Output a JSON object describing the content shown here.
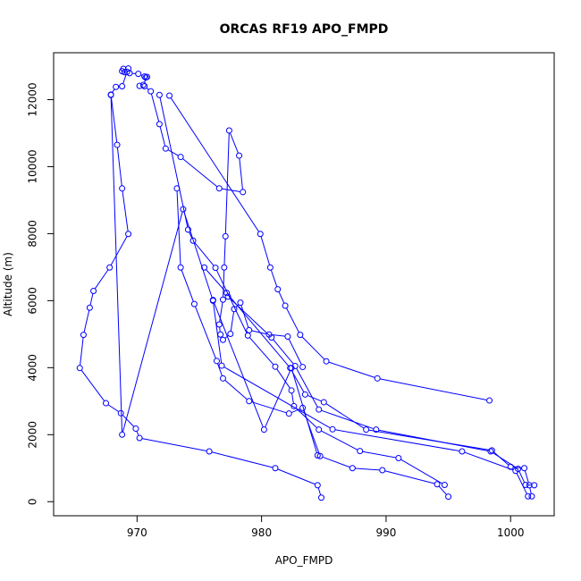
{
  "chart_data": {
    "type": "line",
    "title": "ORCAS RF19 APO_FMPD",
    "xlabel": "APO_FMPD",
    "ylabel": "Altitude (m)",
    "xlim": [
      963.3,
      1003.5
    ],
    "ylim": [
      -420,
      13400
    ],
    "xticks": [
      970,
      980,
      990,
      1000
    ],
    "yticks": [
      0,
      2000,
      4000,
      6000,
      8000,
      10000,
      12000
    ],
    "grid": false,
    "legend": "none",
    "colors": {
      "series": "#0000ff",
      "axes": "#000000",
      "background": "#ffffff"
    },
    "series": [
      {
        "x": [
          984.8,
          984.5,
          981.1,
          975.8,
          970.2,
          969.9,
          968.7,
          967.5,
          965.4,
          965.7,
          966.2,
          966.5,
          967.8,
          969.3,
          968.8,
          968.4,
          967.9,
          968.3,
          968.8,
          969.2,
          969.3,
          969.0,
          968.9,
          968.8,
          969.4,
          970.1,
          970.6,
          970.7,
          970.8,
          970.5,
          970.2,
          970.6,
          971.1,
          971.8,
          972.3,
          973.5,
          976.6,
          978.5,
          978.2,
          977.4,
          977.1,
          977.0,
          976.9,
          976.6,
          976.7,
          976.9,
          977.5,
          977.8,
          978.3,
          979.0,
          980.6,
          982.1,
          983.3
        ],
        "y": [
          120,
          490,
          1000,
          1500,
          1900,
          2180,
          2640,
          2940,
          3990,
          4980,
          5790,
          6290,
          6990,
          7990,
          9350,
          10650,
          12150,
          12380,
          12400,
          12830,
          12930,
          12820,
          12920,
          12850,
          12790,
          12770,
          12690,
          12660,
          12680,
          12440,
          12410,
          12400,
          12250,
          11270,
          10540,
          10290,
          9350,
          9240,
          10330,
          11080,
          7920,
          6990,
          6030,
          5290,
          4990,
          4830,
          5010,
          5750,
          5940,
          5120,
          4990,
          4930,
          4020
        ]
      },
      {
        "x": [
          972.6,
          979.9,
          980.7,
          981.3,
          981.9,
          983.1,
          985.2,
          989.3,
          998.3
        ],
        "y": [
          12120,
          7990,
          6990,
          6340,
          5850,
          4980,
          4190,
          3680,
          3020
        ]
      },
      {
        "x": [
          1001.4,
          1000.4,
          996.1,
          985.7,
          976.8,
          976.1,
          973.7,
          968.8,
          967.9
        ],
        "y": [
          160,
          920,
          1500,
          2160,
          4060,
          6000,
          8730,
          2000,
          12140
        ]
      },
      {
        "x": [
          971.8,
          974.1,
          974.5,
          976.3,
          978.9,
          981.1,
          982.4,
          982.6,
          984.6,
          987.9,
          991.0,
          994.7
        ],
        "y": [
          12140,
          8120,
          7790,
          6980,
          4960,
          4030,
          3320,
          2850,
          2150,
          1510,
          1300,
          500
        ]
      },
      {
        "x": [
          973.2,
          973.5,
          974.6,
          976.4,
          976.9,
          979.0,
          982.2,
          983.3,
          984.7,
          987.3,
          989.7,
          994.1,
          995.0
        ],
        "y": [
          9350,
          6990,
          5900,
          4200,
          3680,
          3000,
          2630,
          2800,
          1360,
          1000,
          940,
          520,
          150
        ]
      },
      {
        "x": [
          975.4,
          977.2,
          982.3,
          983.5,
          985.0,
          988.4,
          998.5,
          1000.0,
          1001.1,
          1001.5,
          1001.7
        ],
        "y": [
          6990,
          6230,
          3990,
          3200,
          2970,
          2150,
          1530,
          1040,
          1000,
          490,
          160
        ]
      },
      {
        "x": [
          977.3,
          980.8,
          982.7,
          984.6,
          989.2,
          998.4,
          1000.6,
          1001.2,
          1001.9
        ],
        "y": [
          6120,
          4900,
          4050,
          2750,
          2150,
          1500,
          980,
          500,
          490
        ]
      },
      {
        "x": [
          984.5,
          982.4,
          980.2,
          976.1
        ],
        "y": [
          1380,
          3990,
          2150,
          6020
        ]
      }
    ]
  }
}
